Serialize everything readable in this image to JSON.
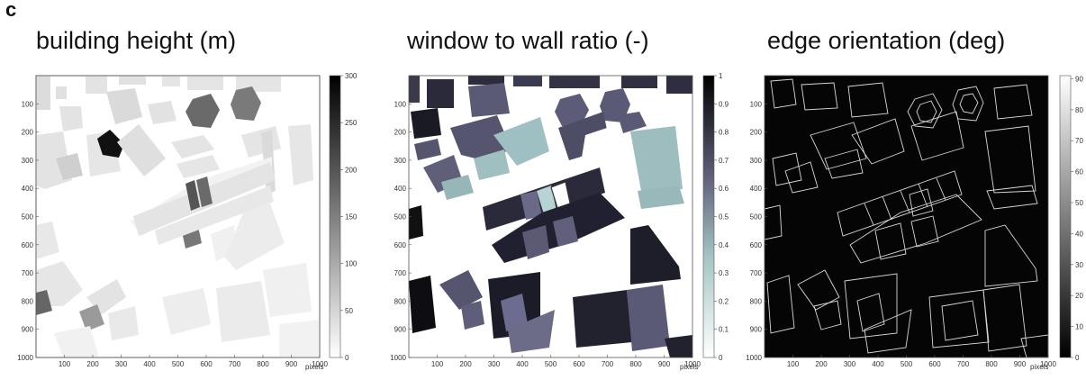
{
  "panel_label": "c",
  "panels": [
    {
      "title": "building height (m)",
      "colormap": "grey-white-to-black",
      "x_ticks": [
        "100",
        "200",
        "300",
        "400",
        "500",
        "600",
        "700",
        "800",
        "900",
        "1000"
      ],
      "y_ticks": [
        "100",
        "200",
        "300",
        "400",
        "500",
        "600",
        "700",
        "800",
        "900",
        "1000"
      ],
      "x_label": "pixels",
      "colorbar_ticks": [
        "0",
        "50",
        "100",
        "150",
        "200",
        "250",
        "300"
      ]
    },
    {
      "title": "window to wall ratio (-)",
      "colormap": "bone",
      "x_ticks": [
        "100",
        "200",
        "300",
        "400",
        "500",
        "600",
        "700",
        "800",
        "900",
        "1000"
      ],
      "y_ticks": [
        "100",
        "200",
        "300",
        "400",
        "500",
        "600",
        "700",
        "800",
        "900",
        "1000"
      ],
      "x_label": "pixels",
      "colorbar_ticks": [
        "0",
        "0.1",
        "0.2",
        "0.3",
        "0.4",
        "0.5",
        "0.6",
        "0.7",
        "0.8",
        "0.9",
        "1"
      ]
    },
    {
      "title": "edge orientation (deg)",
      "colormap": "grey-black-to-white",
      "x_ticks": [
        "100",
        "200",
        "300",
        "400",
        "500",
        "600",
        "700",
        "800",
        "900",
        "1000"
      ],
      "y_ticks": [
        "100",
        "200",
        "300",
        "400",
        "500",
        "600",
        "700",
        "800",
        "900",
        "1000"
      ],
      "x_label": "pixels",
      "colorbar_ticks": [
        "0",
        "10",
        "20",
        "30",
        "40",
        "50",
        "60",
        "70",
        "80",
        "90"
      ]
    }
  ]
}
